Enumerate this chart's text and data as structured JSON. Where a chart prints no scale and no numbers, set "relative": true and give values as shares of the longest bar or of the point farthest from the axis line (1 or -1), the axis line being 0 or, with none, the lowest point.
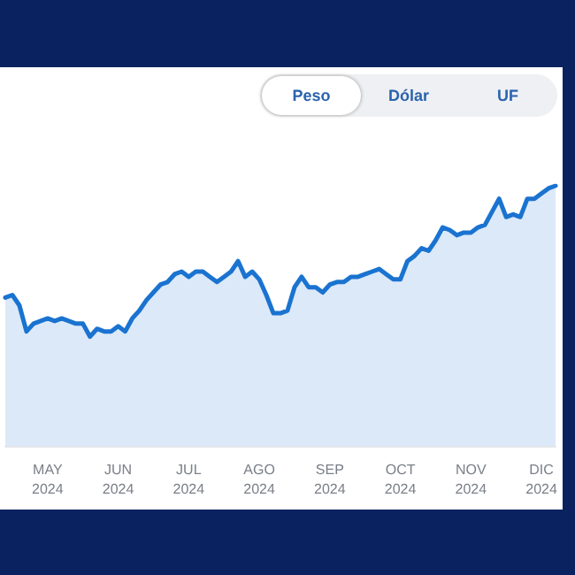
{
  "chart_data": {
    "type": "area",
    "relative": true,
    "marker": "none",
    "line_style": "solid",
    "annotations": [
      "Peso",
      "Dólar",
      "UF"
    ],
    "categories": [
      null,
      null,
      null,
      null,
      null,
      null,
      "MAY 2024",
      null,
      null,
      null,
      null,
      null,
      null,
      null,
      null,
      null,
      "JUN 2024",
      null,
      null,
      null,
      null,
      null,
      null,
      null,
      null,
      null,
      "JUL 2024",
      null,
      null,
      null,
      null,
      null,
      null,
      null,
      null,
      null,
      "AGO 2024",
      null,
      null,
      null,
      null,
      null,
      null,
      null,
      null,
      null,
      "SEP 2024",
      null,
      null,
      null,
      null,
      null,
      null,
      null,
      null,
      null,
      "OCT 2024",
      null,
      null,
      null,
      null,
      null,
      null,
      null,
      null,
      null,
      "NOV 2024",
      null,
      null,
      null,
      null,
      null,
      null,
      null,
      null,
      null,
      "DIC 2024",
      null,
      null
    ],
    "series": [
      {
        "color": "#1a73d0",
        "values": [
          0.57,
          0.58,
          0.54,
          0.44,
          0.47,
          0.48,
          0.49,
          0.48,
          0.49,
          0.48,
          0.47,
          0.47,
          0.42,
          0.45,
          0.44,
          0.44,
          0.46,
          0.44,
          0.49,
          0.52,
          0.56,
          0.59,
          0.62,
          0.63,
          0.66,
          0.67,
          0.65,
          0.67,
          0.67,
          0.65,
          0.63,
          0.65,
          0.67,
          0.71,
          0.65,
          0.67,
          0.64,
          0.58,
          0.51,
          0.51,
          0.52,
          0.61,
          0.65,
          0.61,
          0.61,
          0.59,
          0.62,
          0.63,
          0.63,
          0.65,
          0.65,
          0.66,
          0.67,
          0.68,
          0.66,
          0.64,
          0.64,
          0.71,
          0.73,
          0.76,
          0.75,
          0.79,
          0.84,
          0.83,
          0.81,
          0.82,
          0.82,
          0.84,
          0.85,
          0.9,
          0.95,
          0.88,
          0.89,
          0.88,
          0.95,
          0.95,
          0.97,
          0.99,
          1
        ]
      }
    ]
  }
}
